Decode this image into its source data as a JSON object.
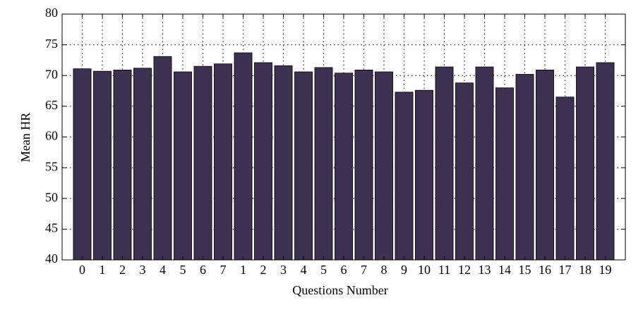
{
  "chart_data": {
    "type": "bar",
    "xlabel": "Questions Number",
    "ylabel": "Mean HR",
    "categories": [
      "0",
      "1",
      "2",
      "3",
      "4",
      "5",
      "6",
      "7",
      "1",
      "2",
      "3",
      "4",
      "5",
      "6",
      "7",
      "8",
      "9",
      "10",
      "11",
      "12",
      "13",
      "14",
      "15",
      "16",
      "17",
      "18",
      "19"
    ],
    "values": [
      71.1,
      70.7,
      70.9,
      71.2,
      73.1,
      70.6,
      71.5,
      71.9,
      73.7,
      72.1,
      71.6,
      70.6,
      71.3,
      70.4,
      70.9,
      70.6,
      67.3,
      67.6,
      71.4,
      68.8,
      71.4,
      68.0,
      70.2,
      70.9,
      66.5,
      71.4,
      72.1
    ],
    "color": "#3e3050",
    "ylim": [
      40,
      80
    ],
    "yticks": [
      40,
      45,
      50,
      55,
      60,
      65,
      70,
      75,
      80
    ],
    "grid": true
  }
}
